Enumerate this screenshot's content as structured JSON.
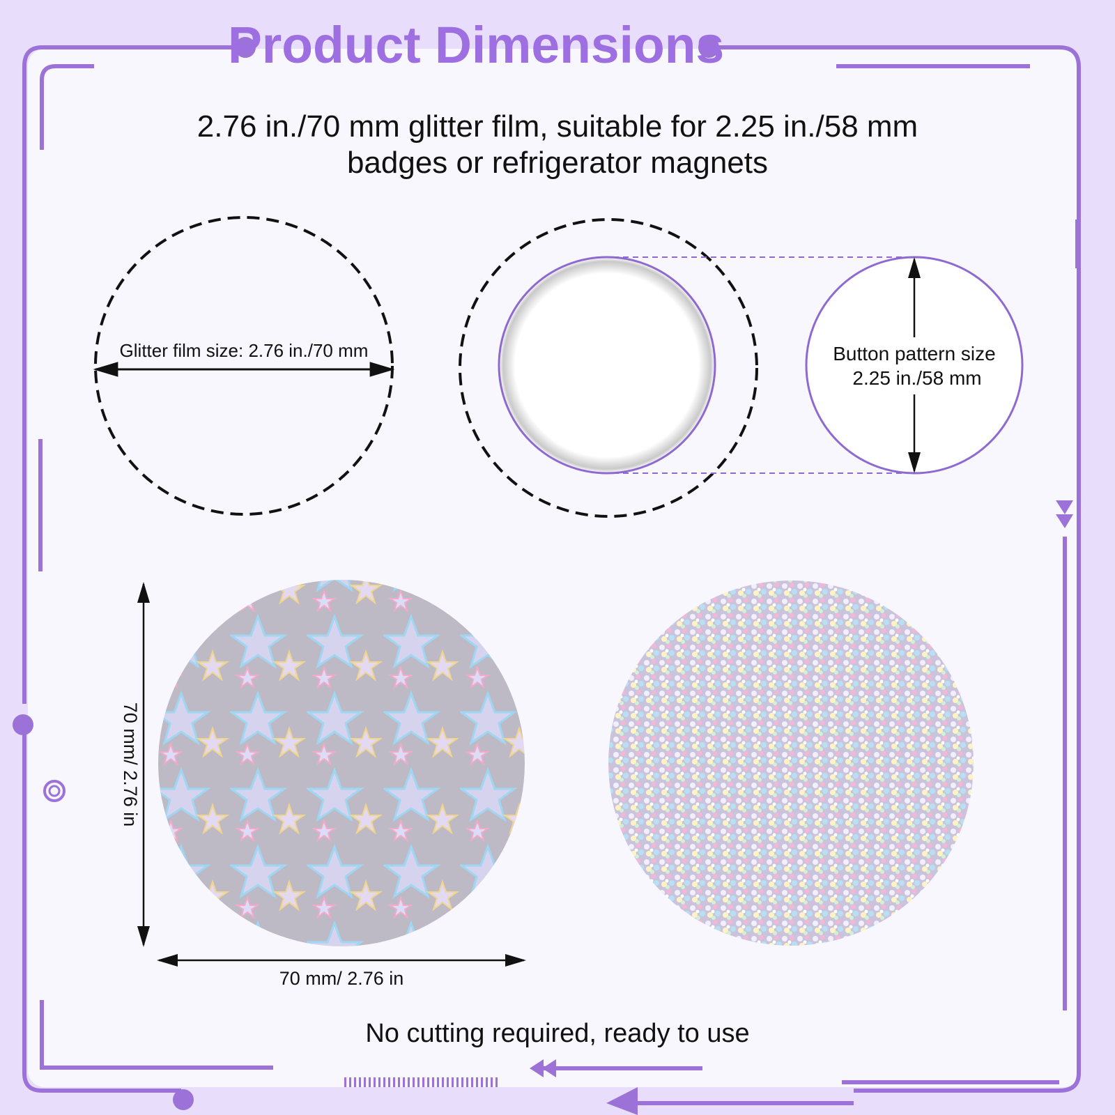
{
  "header": {
    "title": "Product Dimensions",
    "subtitle": [
      "2.76 in./70 mm glitter film, suitable for 2.25 in./58 mm",
      "badges or refrigerator magnets"
    ]
  },
  "diagram": {
    "film_label": "Glitter film size: 2.76 in./70 mm",
    "button_label": [
      "Button pattern size",
      "2.25 in./58 mm"
    ]
  },
  "samples": {
    "height_label": "70 mm/ 2.76 in",
    "width_label": "70 mm/ 2.76 in"
  },
  "footer": {
    "note": "No cutting required, ready to use"
  }
}
